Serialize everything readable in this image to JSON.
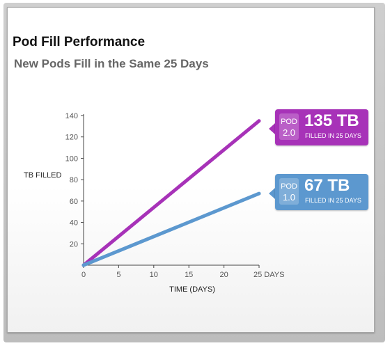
{
  "colors": {
    "pod2": "#a732b8",
    "pod1": "#5c98cf",
    "axis": "#444444",
    "tick": "#555555"
  },
  "title": "Pod Fill Performance",
  "subtitle": "New Pods Fill in the Same 25 Days",
  "callouts": {
    "pod2": {
      "tag_top": "POD",
      "tag_bottom": "2.0",
      "value": "135 TB",
      "caption": "FILLED IN 25 DAYS"
    },
    "pod1": {
      "tag_top": "POD",
      "tag_bottom": "1.0",
      "value": "67 TB",
      "caption": "FILLED IN 25 DAYS"
    }
  },
  "chart_data": {
    "type": "line",
    "xlabel": "TIME (DAYS)",
    "ylabel": "TB FILLED",
    "xlim": [
      0,
      25
    ],
    "ylim": [
      0,
      140
    ],
    "x_ticks": [
      "0",
      "5",
      "10",
      "15",
      "20",
      "25 DAYS"
    ],
    "y_ticks": [
      "20",
      "40",
      "60",
      "80",
      "100",
      "120",
      "140"
    ],
    "x_tick_values": [
      0,
      5,
      10,
      15,
      20,
      25
    ],
    "y_tick_values": [
      20,
      40,
      60,
      80,
      100,
      120,
      140
    ],
    "grid": false,
    "series": [
      {
        "name": "POD 2.0",
        "x": [
          0,
          25
        ],
        "y": [
          0,
          135
        ],
        "color": "#a732b8"
      },
      {
        "name": "POD 1.0",
        "x": [
          0,
          25
        ],
        "y": [
          0,
          67
        ],
        "color": "#5c98cf"
      }
    ]
  }
}
